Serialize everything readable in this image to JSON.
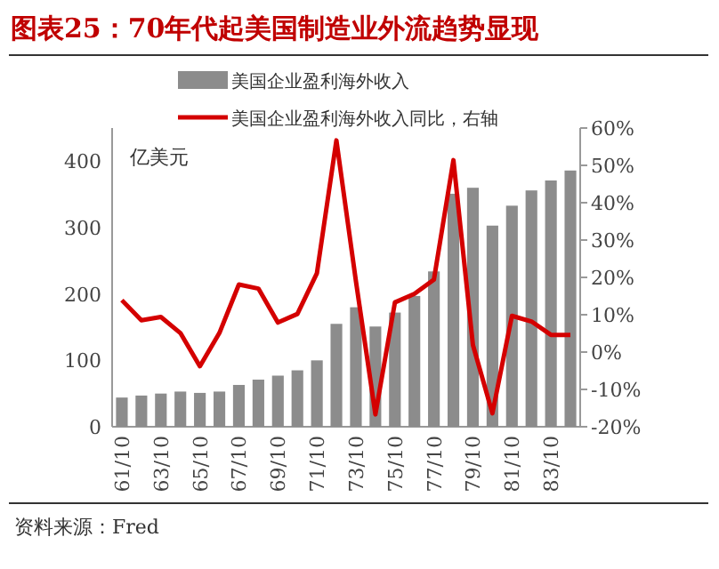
{
  "chart_data": {
    "type": "bar",
    "title": "图表25：70年代起美国制造业外流趋势显现",
    "ylabel": "亿美元",
    "annotations": [
      "资料来源：Fred"
    ],
    "categories": [
      "61/10",
      null,
      "63/10",
      null,
      "65/10",
      null,
      "67/10",
      null,
      "69/10",
      null,
      "71/10",
      null,
      "73/10",
      null,
      "75/10",
      null,
      "77/10",
      null,
      "79/10",
      null,
      "81/10",
      null,
      "83/10",
      null
    ],
    "series": [
      {
        "name": "美国企业盈利海外收入",
        "color": "#8c8c8c",
        "values": [
          44,
          47,
          50,
          53,
          51,
          53,
          63,
          71,
          77,
          85,
          100,
          155,
          180,
          151,
          172,
          197,
          234,
          351,
          360,
          303,
          333,
          356,
          371,
          386
        ]
      },
      {
        "name": "美国企业盈利海外收入同比，右轴",
        "type": "line",
        "axis": "y2",
        "color": "#d40000",
        "values": [
          13.9,
          8.5,
          9.4,
          5.1,
          -3.8,
          5.1,
          18.1,
          17.0,
          7.9,
          10.2,
          21.1,
          56.7,
          19,
          -16.7,
          13.3,
          15.6,
          19.4,
          51.4,
          1.9,
          -16.4,
          9.7,
          8.2,
          4.6,
          4.6
        ]
      }
    ],
    "ylim": [
      0,
      450
    ],
    "yticks": [
      0,
      100,
      200,
      300,
      400
    ],
    "y2lim": [
      -20,
      60
    ],
    "y2ticks": [
      {
        "value": -20,
        "label": "-20%"
      },
      {
        "value": -10,
        "label": "-10%"
      },
      {
        "value": 0,
        "label": "0%"
      },
      {
        "value": 10,
        "label": "10%"
      },
      {
        "value": 20,
        "label": "20%"
      },
      {
        "value": 30,
        "label": "30%"
      },
      {
        "value": 40,
        "label": "40%"
      },
      {
        "value": 50,
        "label": "50%"
      },
      {
        "value": 60,
        "label": "60%"
      }
    ],
    "legend": "top",
    "grid": false
  }
}
